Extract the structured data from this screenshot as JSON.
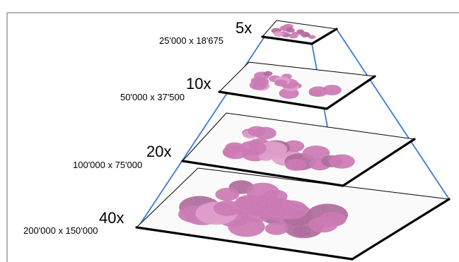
{
  "pyramid": {
    "levels": [
      {
        "magnification": "5x",
        "resolution": "25'000 x 18'675"
      },
      {
        "magnification": "10x",
        "resolution": "50'000 x 37'500"
      },
      {
        "magnification": "20x",
        "resolution": "100'000 x 75'000"
      },
      {
        "magnification": "40x",
        "resolution": "200'000 x 150'000"
      }
    ],
    "colors": {
      "tissue": "#c45aa8",
      "tissue_dark": "#a2408a",
      "tissue_light": "#dc8fc6",
      "plate": "#fafafa",
      "edge": "#000000",
      "ray": "#3b7bd0"
    }
  }
}
